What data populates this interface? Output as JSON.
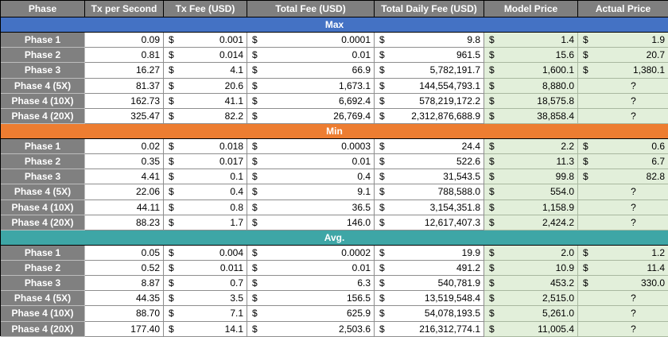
{
  "headers": [
    "Phase",
    "Tx per Second",
    "Tx Fee (USD)",
    "Total Fee (USD)",
    "Total Daily Fee (USD)",
    "Model Price",
    "Actual Price"
  ],
  "currency_symbol": "$",
  "unknown_marker": "?",
  "sections": [
    {
      "label": "Max",
      "rows": [
        {
          "phase": "Phase 1",
          "tps": "0.09",
          "tx_fee": "0.001",
          "total_fee": "0.0001",
          "daily_fee": "9.8",
          "model_price": "1.4",
          "actual_price": "1.9"
        },
        {
          "phase": "Phase 2",
          "tps": "0.81",
          "tx_fee": "0.014",
          "total_fee": "0.01",
          "daily_fee": "961.5",
          "model_price": "15.6",
          "actual_price": "20.7"
        },
        {
          "phase": "Phase 3",
          "tps": "16.27",
          "tx_fee": "4.1",
          "total_fee": "66.9",
          "daily_fee": "5,782,191.7",
          "model_price": "1,600.1",
          "actual_price": "1,380.1"
        },
        {
          "phase": "Phase 4 (5X)",
          "tps": "81.37",
          "tx_fee": "20.6",
          "total_fee": "1,673.1",
          "daily_fee": "144,554,793.1",
          "model_price": "8,880.0",
          "actual_price": null
        },
        {
          "phase": "Phase 4 (10X)",
          "tps": "162.73",
          "tx_fee": "41.1",
          "total_fee": "6,692.4",
          "daily_fee": "578,219,172.2",
          "model_price": "18,575.8",
          "actual_price": null
        },
        {
          "phase": "Phase 4 (20X)",
          "tps": "325.47",
          "tx_fee": "82.2",
          "total_fee": "26,769.4",
          "daily_fee": "2,312,876,688.9",
          "model_price": "38,858.4",
          "actual_price": null
        }
      ]
    },
    {
      "label": "Min",
      "rows": [
        {
          "phase": "Phase 1",
          "tps": "0.02",
          "tx_fee": "0.018",
          "total_fee": "0.0003",
          "daily_fee": "24.4",
          "model_price": "2.2",
          "actual_price": "0.6"
        },
        {
          "phase": "Phase 2",
          "tps": "0.35",
          "tx_fee": "0.017",
          "total_fee": "0.01",
          "daily_fee": "522.6",
          "model_price": "11.3",
          "actual_price": "6.7"
        },
        {
          "phase": "Phase 3",
          "tps": "4.41",
          "tx_fee": "0.1",
          "total_fee": "0.4",
          "daily_fee": "31,543.5",
          "model_price": "99.8",
          "actual_price": "82.8"
        },
        {
          "phase": "Phase 4 (5X)",
          "tps": "22.06",
          "tx_fee": "0.4",
          "total_fee": "9.1",
          "daily_fee": "788,588.0",
          "model_price": "554.0",
          "actual_price": null
        },
        {
          "phase": "Phase 4 (10X)",
          "tps": "44.11",
          "tx_fee": "0.8",
          "total_fee": "36.5",
          "daily_fee": "3,154,351.8",
          "model_price": "1,158.9",
          "actual_price": null
        },
        {
          "phase": "Phase 4 (20X)",
          "tps": "88.23",
          "tx_fee": "1.7",
          "total_fee": "146.0",
          "daily_fee": "12,617,407.3",
          "model_price": "2,424.2",
          "actual_price": null
        }
      ]
    },
    {
      "label": "Avg.",
      "rows": [
        {
          "phase": "Phase 1",
          "tps": "0.05",
          "tx_fee": "0.004",
          "total_fee": "0.0002",
          "daily_fee": "19.9",
          "model_price": "2.0",
          "actual_price": "1.2"
        },
        {
          "phase": "Phase 2",
          "tps": "0.52",
          "tx_fee": "0.011",
          "total_fee": "0.01",
          "daily_fee": "491.2",
          "model_price": "10.9",
          "actual_price": "11.4"
        },
        {
          "phase": "Phase 3",
          "tps": "8.87",
          "tx_fee": "0.7",
          "total_fee": "6.3",
          "daily_fee": "540,781.9",
          "model_price": "453.2",
          "actual_price": "330.0"
        },
        {
          "phase": "Phase 4 (5X)",
          "tps": "44.35",
          "tx_fee": "3.5",
          "total_fee": "156.5",
          "daily_fee": "13,519,548.4",
          "model_price": "2,515.0",
          "actual_price": null
        },
        {
          "phase": "Phase 4 (10X)",
          "tps": "88.70",
          "tx_fee": "7.1",
          "total_fee": "625.9",
          "daily_fee": "54,078,193.5",
          "model_price": "5,261.0",
          "actual_price": null
        },
        {
          "phase": "Phase 4 (20X)",
          "tps": "177.40",
          "tx_fee": "14.1",
          "total_fee": "2,503.6",
          "daily_fee": "216,312,774.1",
          "model_price": "11,005.4",
          "actual_price": null
        }
      ]
    }
  ],
  "colors": {
    "header_bg": "#7f7f7f",
    "max_band": "#4472c4",
    "min_band": "#ed7d31",
    "avg_band": "#3ea6a6",
    "phase_cell": "#808080",
    "price_cell": "#e2efda"
  }
}
